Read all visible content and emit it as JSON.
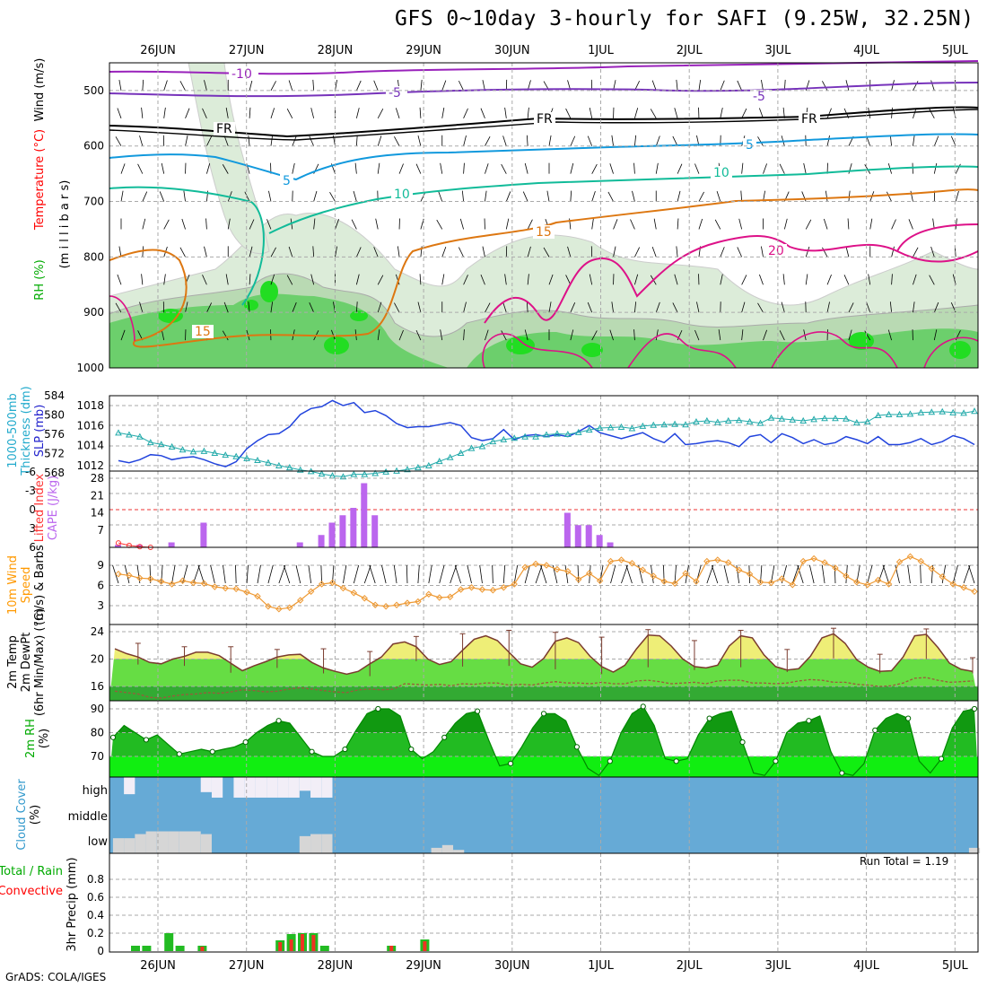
{
  "title": "GFS 0~10day 3-hourly for SAFI (9.25W, 32.25N)",
  "credit": "GrADS: COLA/IGES",
  "run_total_label": "Run Total = 1.19",
  "dates": [
    "26JUN",
    "27JUN",
    "28JUN",
    "29JUN",
    "30JUN",
    "1JUL",
    "2JUL",
    "3JUL",
    "4JUL",
    "5JUL"
  ],
  "panel_labels": {
    "upper": [
      {
        "text": "Wind (m/s)",
        "color": "#000000"
      },
      {
        "text": "Temperature (°C)",
        "color": "#ff0000"
      },
      {
        "text": "(m i l l i b a r s)",
        "color": "#000000"
      },
      {
        "text": "RH (%)",
        "color": "#00aa00"
      }
    ],
    "slp": [
      {
        "text": "SLP (mb)",
        "color": "#2222cc"
      },
      {
        "text": "1000-500mb",
        "color": "#22aacc"
      },
      {
        "text": "Thickness (dm)",
        "color": "#22aacc"
      }
    ],
    "cape": [
      {
        "text": "CAPE (J/kg)",
        "color": "#bb66ee"
      },
      {
        "text": "Lifted Index",
        "color": "#ff3333"
      }
    ],
    "wind10": [
      {
        "text": "10m Wind",
        "color": "#ff9900"
      },
      {
        "text": "Speed",
        "color": "#ff9900"
      },
      {
        "text": "(m/s) & Barbs",
        "color": "#000000"
      }
    ],
    "temp2m": [
      {
        "text": "2m Temp",
        "color": "#000000"
      },
      {
        "text": "2m DewPt",
        "color": "#000000"
      },
      {
        "text": "(6hr Min/Max) (°C)",
        "color": "#000000"
      }
    ],
    "rh2m": [
      {
        "text": "2m RH",
        "color": "#00aa00"
      },
      {
        "text": "(%)",
        "color": "#000000"
      }
    ],
    "cloud": [
      {
        "text": "Cloud Cover",
        "color": "#3399cc"
      },
      {
        "text": "(%)",
        "color": "#000000"
      }
    ],
    "precip": [
      {
        "text": "Total / Rain",
        "color": "#00aa00"
      },
      {
        "text": "Convective",
        "color": "#ff0000"
      },
      {
        "text": "3hr Precip (mm)",
        "color": "#000000"
      }
    ]
  },
  "chart_data": [
    {
      "type": "contour",
      "panel": "upper-air",
      "y_ticks": [
        "500",
        "600",
        "700",
        "800",
        "900",
        "1000"
      ],
      "contour_labels": [
        "-10",
        "-5",
        "FR",
        "5",
        "10",
        "15",
        "20"
      ],
      "colors": {
        "rh_light": "#dcecd9",
        "rh_mid": "#b9dab3",
        "rh_dark": "#6ccf6c",
        "rh_max": "#22dd22",
        "m10": "#9922bb",
        "m5": "#7733bb",
        "fr": "#000000",
        "p5": "#1199dd",
        "p10": "#11bb99",
        "p15": "#dd7711",
        "p20": "#dd1188"
      }
    },
    {
      "type": "line",
      "panel": "slp-thickness",
      "y_ticks_slp": [
        "1012",
        "1014",
        "1016",
        "1018"
      ],
      "y_ticks_thickness": [
        "568",
        "572",
        "576",
        "580",
        "584"
      ],
      "series": [
        {
          "name": "SLP (mb)",
          "color": "#2244dd",
          "values": [
            1012.5,
            1012.3,
            1012.6,
            1013.1,
            1013.0,
            1012.6,
            1012.8,
            1012.9,
            1012.6,
            1012.2,
            1011.9,
            1012.4,
            1013.7,
            1014.5,
            1015.1,
            1015.2,
            1015.9,
            1017.1,
            1017.7,
            1017.9,
            1018.5,
            1018.0,
            1018.3,
            1017.3,
            1017.5,
            1017.0,
            1016.2,
            1015.8,
            1015.9,
            1015.9,
            1016.1,
            1016.3,
            1016.0,
            1014.8,
            1014.5,
            1014.7,
            1015.6,
            1014.6,
            1015.0,
            1015.1,
            1014.9,
            1015.1,
            1014.9,
            1015.4,
            1016.0,
            1015.3,
            1015.0,
            1014.7,
            1015.0,
            1015.3,
            1014.7,
            1014.3,
            1015.2,
            1014.1,
            1014.2,
            1014.4,
            1014.5,
            1014.3,
            1013.9,
            1014.9,
            1015.1,
            1014.3,
            1015.2,
            1014.8,
            1014.2,
            1014.6,
            1014.1,
            1014.3,
            1014.9,
            1014.6,
            1014.2,
            1014.9,
            1014.1,
            1014.1,
            1014.3,
            1014.7,
            1014.1,
            1014.4,
            1015.0,
            1014.7,
            1014.1
          ]
        },
        {
          "name": "1000-500mb Thickness (dm)",
          "color": "#22aaaa",
          "values": [
            576.3,
            575.9,
            575.5,
            574.3,
            573.9,
            573.4,
            572.8,
            572.4,
            572.5,
            572.1,
            571.7,
            571.4,
            571.0,
            570.6,
            570.1,
            569.5,
            569.1,
            568.6,
            568.3,
            567.8,
            567.4,
            567.2,
            567.7,
            567.7,
            567.9,
            568.2,
            568.4,
            568.7,
            569.1,
            569.5,
            570.4,
            571.2,
            572.1,
            573.1,
            573.5,
            574.5,
            574.9,
            575.2,
            575.5,
            575.5,
            575.9,
            576.1,
            576.0,
            576.4,
            576.9,
            577.3,
            577.4,
            577.5,
            577.2,
            577.7,
            577.9,
            578.0,
            578.1,
            578.0,
            578.6,
            578.8,
            578.5,
            578.8,
            578.9,
            578.6,
            578.3,
            579.4,
            579.2,
            579.0,
            578.8,
            579.1,
            579.3,
            579.3,
            579.2,
            578.4,
            578.6,
            579.9,
            580.1,
            580.1,
            580.2,
            580.5,
            580.6,
            580.7,
            580.5,
            580.4,
            580.8
          ]
        }
      ]
    },
    {
      "type": "bar",
      "panel": "cape-li",
      "y_ticks_cape": [
        "7",
        "14",
        "21",
        "28"
      ],
      "y_ticks_li": [
        "-3",
        "0",
        "3",
        "6",
        "-6"
      ],
      "series": [
        {
          "name": "CAPE (J/kg)",
          "color": "#bb66ee",
          "values": [
            1,
            0,
            1,
            0,
            0,
            2,
            0,
            0,
            10,
            0,
            0,
            0,
            0,
            0,
            0,
            0,
            0,
            2,
            0,
            5,
            10,
            13,
            16,
            26,
            13,
            0,
            0,
            0,
            0,
            0,
            0,
            0,
            0,
            0,
            0,
            0,
            0,
            0,
            0,
            0,
            0,
            0,
            14,
            9,
            9,
            5,
            2
          ]
        },
        {
          "name": "Lifted Index",
          "color": "#ff3333",
          "values": [
            5.3,
            5.7,
            5.9,
            6.0
          ]
        }
      ]
    },
    {
      "type": "line",
      "panel": "wind10",
      "y_ticks": [
        "3",
        "6",
        "9"
      ],
      "series": [
        {
          "name": "Speed",
          "color": "#ee9933",
          "values": [
            7.7,
            7.5,
            7.1,
            7.0,
            6.6,
            6.2,
            6.7,
            6.4,
            6.3,
            5.8,
            5.6,
            5.5,
            5.0,
            4.4,
            2.9,
            2.5,
            2.7,
            3.8,
            5.1,
            6.2,
            6.4,
            5.6,
            4.9,
            4.1,
            3.1,
            2.9,
            3.1,
            3.4,
            3.6,
            4.7,
            4.2,
            4.3,
            5.4,
            5.7,
            5.4,
            5.3,
            5.7,
            6.2,
            8.7,
            9.2,
            9.0,
            8.4,
            8.1,
            6.9,
            7.8,
            6.7,
            9.6,
            9.8,
            9.3,
            8.3,
            7.4,
            6.6,
            6.3,
            7.8,
            6.6,
            9.6,
            9.8,
            9.4,
            8.3,
            7.7,
            6.5,
            6.4,
            7.0,
            6.1,
            9.6,
            10.0,
            9.4,
            8.6,
            7.4,
            6.5,
            6.1,
            6.8,
            6.2,
            9.5,
            10.3,
            9.6,
            8.5,
            7.3,
            6.2,
            5.7,
            5.1
          ]
        }
      ]
    },
    {
      "type": "area",
      "panel": "temp2m",
      "y_ticks": [
        "16",
        "20",
        "24"
      ],
      "series": [
        {
          "name": "2m Temp",
          "color": "#7a3b2e",
          "values": [
            21.5,
            20.8,
            20.3,
            19.5,
            19.3,
            20.0,
            20.4,
            21.0,
            21.0,
            20.5,
            19.4,
            18.3,
            19.0,
            19.6,
            20.3,
            20.6,
            20.7,
            19.5,
            18.7,
            18.2,
            17.8,
            18.2,
            19.3,
            20.3,
            22.2,
            22.5,
            21.8,
            20.0,
            19.2,
            19.6,
            21.3,
            22.9,
            23.4,
            22.7,
            21.0,
            19.3,
            18.8,
            20.1,
            22.6,
            23.1,
            22.4,
            20.4,
            18.9,
            18.1,
            19.1,
            21.5,
            23.5,
            23.4,
            21.9,
            20.0,
            18.9,
            18.7,
            19.1,
            21.9,
            23.4,
            23.1,
            20.6,
            18.9,
            18.4,
            18.6,
            20.4,
            23.1,
            23.7,
            22.3,
            19.9,
            18.8,
            18.2,
            18.3,
            20.3,
            23.4,
            23.6,
            21.7,
            19.4,
            18.5,
            18.2
          ]
        },
        {
          "name": "2m DewPt",
          "color": "#9b5a3c",
          "values": [
            15.3,
            15.1,
            14.9,
            14.4,
            14.3,
            14.6,
            14.8,
            14.9,
            15.1,
            15.0,
            15.2,
            15.5,
            15.4,
            15.2,
            15.3,
            15.6,
            15.8,
            15.6,
            15.4,
            15.2,
            15.1,
            15.5,
            15.6,
            15.5,
            15.6,
            16.4,
            16.3,
            16.2,
            16.3,
            16.1,
            16.4,
            16.3,
            16.5,
            16.5,
            16.2,
            16.3,
            16.2,
            16.5,
            16.7,
            16.5,
            16.5,
            16.4,
            16.6,
            16.4,
            16.4,
            16.8,
            16.9,
            16.7,
            16.4,
            16.5,
            16.6,
            16.4,
            16.8,
            16.9,
            16.9,
            16.5,
            16.5,
            16.4,
            16.5,
            16.8,
            17.0,
            16.9,
            16.6,
            16.6,
            16.3,
            16.2,
            16.0,
            16.1,
            16.5,
            17.2,
            17.3,
            16.9,
            16.6,
            16.7,
            16.8
          ]
        }
      ]
    },
    {
      "type": "area",
      "panel": "rh2m",
      "y_ticks": [
        "70",
        "80",
        "90"
      ],
      "series": [
        {
          "name": "2m RH",
          "color": "#008800",
          "values": [
            78,
            83,
            80,
            77,
            79,
            75,
            71,
            72,
            73,
            72,
            73,
            74,
            76,
            80,
            83,
            85,
            84,
            78,
            72,
            70,
            70,
            73,
            81,
            88,
            90,
            90,
            87,
            73,
            69,
            72,
            78,
            84,
            88,
            89,
            77,
            66,
            67,
            74,
            82,
            88,
            88,
            85,
            74,
            65,
            62,
            68,
            80,
            88,
            91,
            83,
            69,
            68,
            69,
            79,
            86,
            88,
            89,
            76,
            63,
            62,
            68,
            80,
            84,
            85,
            87,
            72,
            63,
            62,
            67,
            81,
            86,
            88,
            86,
            68,
            63,
            69,
            82,
            89,
            90
          ]
        }
      ]
    },
    {
      "type": "bar",
      "panel": "cloud",
      "y_ticks": [
        "high",
        "middle",
        "low"
      ],
      "series": [
        {
          "name": "low",
          "color": "#d6d6d6",
          "values": [
            22,
            22,
            28,
            32,
            32,
            32,
            32,
            32,
            28,
            0,
            0,
            0,
            0,
            0,
            0,
            0,
            0,
            25,
            28,
            28,
            0,
            0,
            0,
            0,
            0,
            0,
            0,
            0,
            0,
            8,
            12,
            5,
            0,
            0,
            0,
            0,
            0,
            0,
            0,
            0,
            0,
            0,
            0,
            0,
            0,
            0,
            0,
            0,
            0,
            0,
            0,
            0,
            0,
            0,
            0,
            0,
            0,
            0,
            0,
            0,
            0,
            0,
            0,
            0,
            0,
            0,
            0,
            0,
            0,
            0,
            0,
            0,
            0,
            0,
            0,
            0,
            0,
            0,
            8
          ]
        },
        {
          "name": "high",
          "color": "#f2eef7",
          "values": [
            0,
            25,
            0,
            0,
            0,
            0,
            0,
            0,
            22,
            30,
            0,
            30,
            30,
            30,
            30,
            30,
            30,
            20,
            30,
            30,
            0,
            0,
            0,
            0,
            0,
            0,
            0,
            0,
            0,
            0,
            0,
            0,
            0,
            0,
            0,
            0,
            0,
            0,
            0,
            0,
            0,
            0,
            0,
            0,
            0,
            0,
            0,
            0,
            0,
            0,
            0,
            0,
            0,
            0,
            0,
            0,
            0,
            0,
            0,
            0,
            0,
            0,
            0,
            0,
            0,
            0,
            0,
            0,
            0,
            0,
            0,
            0,
            0,
            0,
            0,
            0,
            0,
            0,
            0
          ]
        }
      ]
    },
    {
      "type": "bar",
      "panel": "precip",
      "y_ticks": [
        "0",
        "0.2",
        "0.4",
        "0.6",
        "0.8"
      ],
      "ylim": [
        0,
        1.0
      ],
      "series": [
        {
          "name": "Total / Rain",
          "color": "#22bb22",
          "values": [
            0.06,
            0.06,
            0,
            0.2,
            0.06,
            0,
            0.06,
            0,
            0,
            0,
            0,
            0,
            0,
            0.12,
            0.19,
            0.2,
            0.2,
            0.06,
            0,
            0,
            0,
            0,
            0,
            0.06,
            0,
            0,
            0.13
          ]
        },
        {
          "name": "Convective",
          "color": "#ee3322",
          "values": [
            0,
            0,
            0,
            0,
            0,
            0,
            0.05,
            0,
            0,
            0,
            0,
            0,
            0,
            0.1,
            0.13,
            0.19,
            0.18,
            0,
            0,
            0,
            0,
            0,
            0,
            0.06,
            0,
            0,
            0.11
          ]
        }
      ]
    }
  ]
}
